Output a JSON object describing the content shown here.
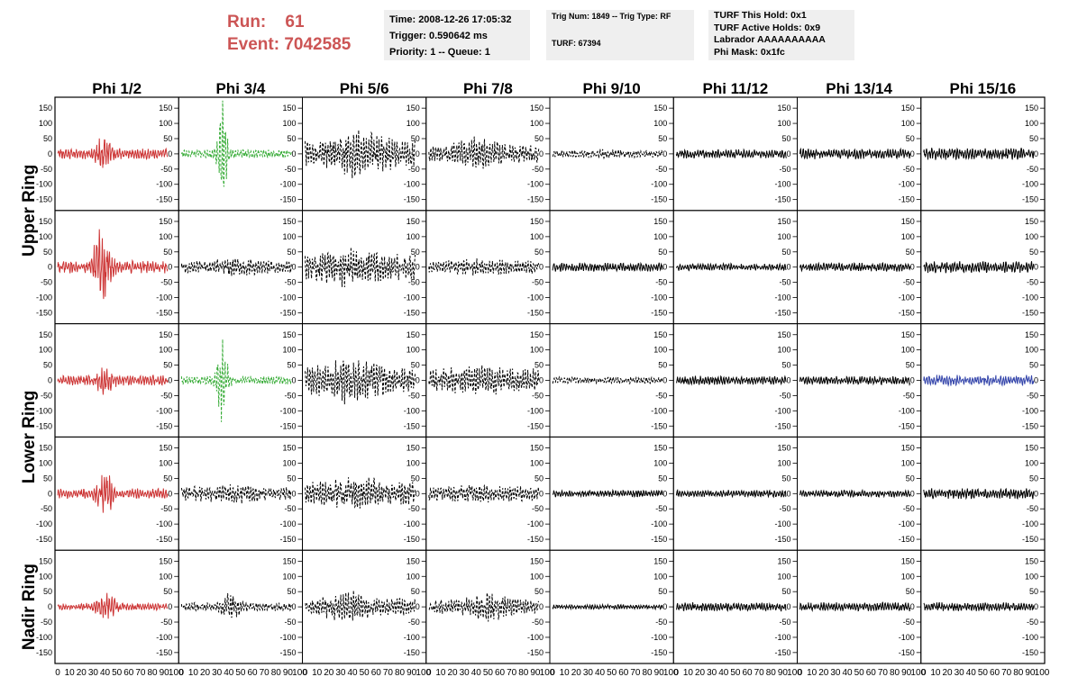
{
  "header": {
    "run_label": "Run:",
    "run_value": "61",
    "event_label": "Event:",
    "event_value": "7042585"
  },
  "info_trigger": {
    "time": "Time: 2008-12-26 17:05:32",
    "trigger": "Trigger: 0.590642 ms",
    "priority": "Priority: 1 -- Queue: 1"
  },
  "info_trig_num": {
    "trig": "Trig Num: 1849 -- Trig Type: RF",
    "turf": "TURF: 67394"
  },
  "info_turf": {
    "hold": "TURF This Hold: 0x1",
    "active": "TURF Active Holds: 0x9",
    "labrador": "Labrador AAAAAAAAAA",
    "phimask": "Phi Mask: 0x1fc"
  },
  "chart_data": {
    "type": "line",
    "column_titles": [
      "Phi 1/2",
      "Phi 3/4",
      "Phi 5/6",
      "Phi 7/8",
      "Phi 9/10",
      "Phi 11/12",
      "Phi 13/14",
      "Phi 15/16"
    ],
    "ring_labels": [
      "Upper Ring",
      "Lower Ring",
      "Nadir Ring"
    ],
    "ring_row_spans": [
      [
        0,
        1
      ],
      [
        2,
        3
      ],
      [
        4,
        4
      ]
    ],
    "ylim": [
      -180,
      180
    ],
    "y_ticks": [
      -150,
      -100,
      -50,
      0,
      50,
      100,
      150
    ],
    "xlim": [
      0,
      100
    ],
    "x_tick_labels": [
      "0",
      "10",
      "20",
      "30",
      "40",
      "50",
      "60",
      "70",
      "80",
      "90",
      "100"
    ],
    "trace_colors": {
      "black": "#000000",
      "red": "#cc3333",
      "green": "#33aa33",
      "blue": "#3344aa"
    },
    "panels": [
      [
        {
          "color": "red",
          "style": "solid",
          "amp": 18,
          "burst_center": 42,
          "burst_amp": 55,
          "burst_width": 8
        },
        {
          "color": "green",
          "style": "dashed",
          "amp": 15,
          "burst_center": 37,
          "burst_amp": 180,
          "burst_width": 4
        },
        {
          "color": "black",
          "style": "dashed",
          "amp": 45,
          "burst_center": 50,
          "burst_amp": 40,
          "burst_width": 25
        },
        {
          "color": "black",
          "style": "dashed",
          "amp": 30,
          "burst_center": 45,
          "burst_amp": 30,
          "burst_width": 20
        },
        {
          "color": "black",
          "style": "dashed",
          "amp": 12,
          "burst_center": 50,
          "burst_amp": 5,
          "burst_width": 20
        },
        {
          "color": "black",
          "style": "solid",
          "amp": 15,
          "burst_center": 50,
          "burst_amp": 0,
          "burst_width": 10
        },
        {
          "color": "black",
          "style": "solid",
          "amp": 18,
          "burst_center": 50,
          "burst_amp": 0,
          "burst_width": 10
        },
        {
          "color": "black",
          "style": "solid",
          "amp": 20,
          "burst_center": 50,
          "burst_amp": 0,
          "burst_width": 10
        }
      ],
      [
        {
          "color": "red",
          "style": "solid",
          "amp": 22,
          "burst_center": 40,
          "burst_amp": 140,
          "burst_width": 7
        },
        {
          "color": "black",
          "style": "dashed",
          "amp": 22,
          "burst_center": 50,
          "burst_amp": 10,
          "burst_width": 20
        },
        {
          "color": "black",
          "style": "dashed",
          "amp": 45,
          "burst_center": 40,
          "burst_amp": 25,
          "burst_width": 25
        },
        {
          "color": "black",
          "style": "dashed",
          "amp": 22,
          "burst_center": 45,
          "burst_amp": 10,
          "burst_width": 20
        },
        {
          "color": "black",
          "style": "solid",
          "amp": 15,
          "burst_center": 50,
          "burst_amp": 0,
          "burst_width": 10
        },
        {
          "color": "black",
          "style": "solid",
          "amp": 12,
          "burst_center": 50,
          "burst_amp": 0,
          "burst_width": 10
        },
        {
          "color": "black",
          "style": "solid",
          "amp": 15,
          "burst_center": 50,
          "burst_amp": 0,
          "burst_width": 10
        },
        {
          "color": "black",
          "style": "solid",
          "amp": 20,
          "burst_center": 50,
          "burst_amp": 0,
          "burst_width": 10
        }
      ],
      [
        {
          "color": "red",
          "style": "solid",
          "amp": 18,
          "burst_center": 42,
          "burst_amp": 30,
          "burst_width": 8
        },
        {
          "color": "green",
          "style": "dashed",
          "amp": 15,
          "burst_center": 37,
          "burst_amp": 130,
          "burst_width": 5
        },
        {
          "color": "black",
          "style": "dashed",
          "amp": 45,
          "burst_center": 40,
          "burst_amp": 35,
          "burst_width": 25
        },
        {
          "color": "black",
          "style": "dashed",
          "amp": 40,
          "burst_center": 50,
          "burst_amp": 10,
          "burst_width": 30
        },
        {
          "color": "black",
          "style": "dashed",
          "amp": 12,
          "burst_center": 50,
          "burst_amp": 0,
          "burst_width": 20
        },
        {
          "color": "black",
          "style": "solid",
          "amp": 15,
          "burst_center": 50,
          "burst_amp": 0,
          "burst_width": 10
        },
        {
          "color": "black",
          "style": "solid",
          "amp": 15,
          "burst_center": 50,
          "burst_amp": 0,
          "burst_width": 10
        },
        {
          "color": "blue",
          "style": "solid",
          "amp": 18,
          "burst_center": 50,
          "burst_amp": 0,
          "burst_width": 10
        }
      ],
      [
        {
          "color": "red",
          "style": "solid",
          "amp": 18,
          "burst_center": 42,
          "burst_amp": 70,
          "burst_width": 8
        },
        {
          "color": "black",
          "style": "dashed",
          "amp": 25,
          "burst_center": 50,
          "burst_amp": 10,
          "burst_width": 20
        },
        {
          "color": "black",
          "style": "dashed",
          "amp": 40,
          "burst_center": 50,
          "burst_amp": 20,
          "burst_width": 25
        },
        {
          "color": "black",
          "style": "dashed",
          "amp": 25,
          "burst_center": 50,
          "burst_amp": 10,
          "burst_width": 20
        },
        {
          "color": "black",
          "style": "solid",
          "amp": 12,
          "burst_center": 50,
          "burst_amp": 0,
          "burst_width": 10
        },
        {
          "color": "black",
          "style": "solid",
          "amp": 12,
          "burst_center": 50,
          "burst_amp": 0,
          "burst_width": 10
        },
        {
          "color": "black",
          "style": "solid",
          "amp": 12,
          "burst_center": 50,
          "burst_amp": 0,
          "burst_width": 10
        },
        {
          "color": "black",
          "style": "solid",
          "amp": 18,
          "burst_center": 50,
          "burst_amp": 0,
          "burst_width": 10
        }
      ],
      [
        {
          "color": "red",
          "style": "solid",
          "amp": 12,
          "burst_center": 45,
          "burst_amp": 35,
          "burst_width": 10
        },
        {
          "color": "black",
          "style": "dashed",
          "amp": 15,
          "burst_center": 45,
          "burst_amp": 35,
          "burst_width": 8
        },
        {
          "color": "black",
          "style": "dashed",
          "amp": 30,
          "burst_center": 40,
          "burst_amp": 30,
          "burst_width": 18
        },
        {
          "color": "black",
          "style": "dashed",
          "amp": 25,
          "burst_center": 55,
          "burst_amp": 25,
          "burst_width": 18
        },
        {
          "color": "black",
          "style": "solid",
          "amp": 8,
          "burst_center": 50,
          "burst_amp": 0,
          "burst_width": 10
        },
        {
          "color": "black",
          "style": "solid",
          "amp": 15,
          "burst_center": 50,
          "burst_amp": 0,
          "burst_width": 10
        },
        {
          "color": "black",
          "style": "solid",
          "amp": 15,
          "burst_center": 50,
          "burst_amp": 0,
          "burst_width": 10
        },
        {
          "color": "black",
          "style": "solid",
          "amp": 15,
          "burst_center": 50,
          "burst_amp": 0,
          "burst_width": 10
        }
      ]
    ]
  }
}
